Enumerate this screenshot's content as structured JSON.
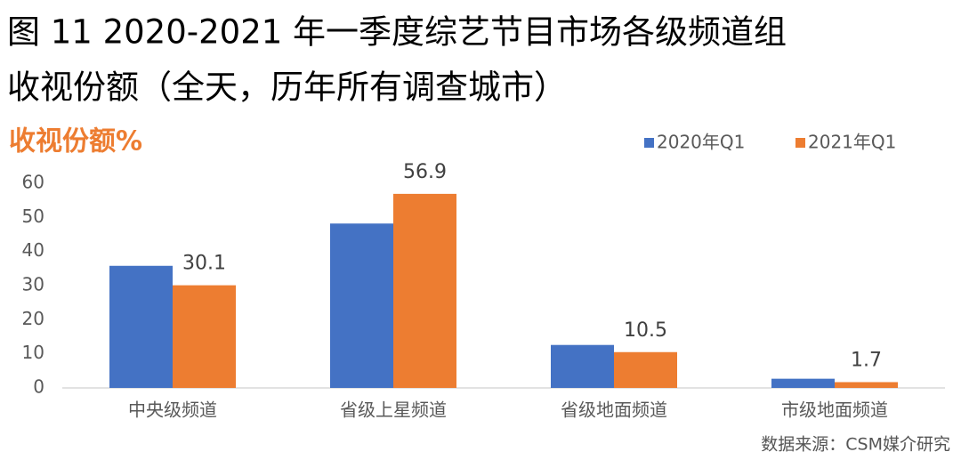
{
  "chart_data": {
    "type": "bar",
    "title": [
      "图 11 2020-2021 年一季度综艺节目市场各级频道组",
      "收视份额（全天，历年所有调查城市）"
    ],
    "y_label": "收视份额%",
    "categories": [
      "中央级频道",
      "省级上星频道",
      "省级地面频道",
      "市级地面频道"
    ],
    "series": [
      {
        "name": "2020年Q1",
        "color": "#4472c4",
        "values": [
          35.8,
          48.2,
          12.6,
          2.7
        ]
      },
      {
        "name": "2021年Q1",
        "color": "#ed7d31",
        "values": [
          30.1,
          56.9,
          10.5,
          1.7
        ],
        "show_labels": true
      }
    ],
    "ylim": [
      0,
      60
    ],
    "yticks": [
      0,
      10,
      20,
      30,
      40,
      50,
      60
    ],
    "grid": false,
    "legend": "top-right",
    "source": "数据来源：CSM媒介研究"
  }
}
